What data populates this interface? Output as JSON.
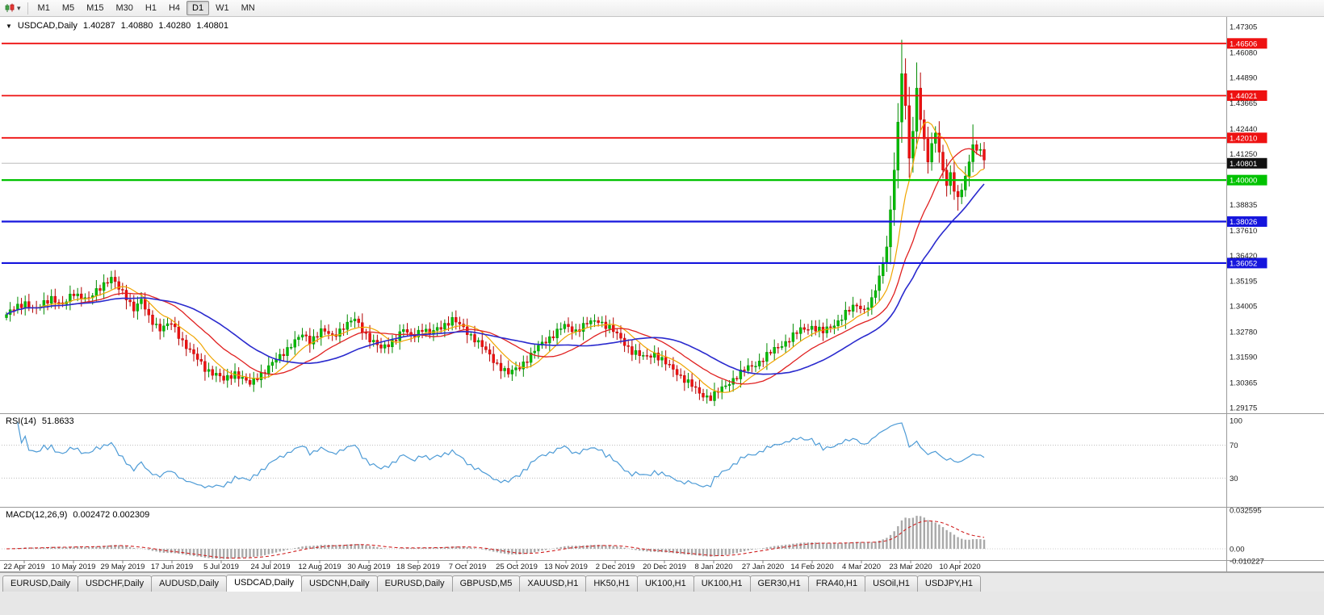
{
  "toolbar": {
    "caret": "▾",
    "timeframes": [
      "M1",
      "M5",
      "M15",
      "M30",
      "H1",
      "H4",
      "D1",
      "W1",
      "MN"
    ],
    "active_timeframe": "D1"
  },
  "header": {
    "collapse_icon": "▼",
    "symbol": "USDCAD,Daily",
    "open": "1.40287",
    "high": "1.40880",
    "low": "1.40280",
    "close": "1.40801"
  },
  "rsi_panel": {
    "title": "RSI(14)",
    "value": "51.8633",
    "levels": [
      "100",
      "70",
      "30"
    ],
    "line_color": "#4d9bd6"
  },
  "macd_panel": {
    "title": "MACD(12,26,9)",
    "value": "0.002472 0.002309",
    "scale_labels": [
      "0.032595",
      "0.00",
      "-0.010227"
    ],
    "signal_color": "#d02020",
    "histogram_color": "#a9a9a9"
  },
  "price_scale": {
    "ticks": [
      "1.47305",
      "1.46080",
      "1.44890",
      "1.43665",
      "1.42440",
      "1.41250",
      "1.38835",
      "1.37610",
      "1.36420",
      "1.35195",
      "1.34005",
      "1.32780",
      "1.31590",
      "1.30365",
      "1.29175"
    ],
    "current_price_label": "1.40801",
    "current_price_bg": "#111111"
  },
  "levels": [
    {
      "price": 1.46506,
      "label": "1.46506",
      "color": "#ee1111",
      "width": 1.8
    },
    {
      "price": 1.44021,
      "label": "1.44021",
      "color": "#ee1111",
      "width": 1.8
    },
    {
      "price": 1.4201,
      "label": "1.42010",
      "color": "#ee1111",
      "width": 1.8
    },
    {
      "price": 1.4,
      "label": "1.40000",
      "color": "#00c200",
      "width": 2.2
    },
    {
      "price": 1.38026,
      "label": "1.38026",
      "color": "#1515dd",
      "width": 2.2
    },
    {
      "price": 1.36052,
      "label": "1.36052",
      "color": "#1515dd",
      "width": 2.2
    }
  ],
  "tabs": {
    "items": [
      "EURUSD,Daily",
      "USDCHF,Daily",
      "AUDUSD,Daily",
      "USDCAD,Daily",
      "USDCNH,Daily",
      "EURUSD,Daily",
      "GBPUSD,M5",
      "XAUUSD,H1",
      "HK50,H1",
      "UK100,H1",
      "UK100,H1",
      "GER30,H1",
      "FRA40,H1",
      "USOil,H1",
      "USDJPY,H1"
    ],
    "active_index": 3
  },
  "chart_data": {
    "type": "candlestick",
    "title": "USDCAD, Daily",
    "symbol": "USDCAD",
    "timeframe": "Daily",
    "current_ohlc": {
      "open": 1.40287,
      "high": 1.4088,
      "low": 1.4028,
      "close": 1.40801
    },
    "current_price": 1.40801,
    "price_axis": {
      "visible_min": 1.29175,
      "visible_max": 1.47305
    },
    "candle_count": 262,
    "up_color": "#00bb00",
    "down_color": "#ee1111",
    "close_anchors": [
      [
        0,
        1.336
      ],
      [
        3,
        1.3395
      ],
      [
        5,
        1.342
      ],
      [
        8,
        1.338
      ],
      [
        12,
        1.3445
      ],
      [
        15,
        1.34
      ],
      [
        18,
        1.3465
      ],
      [
        22,
        1.343
      ],
      [
        26,
        1.351
      ],
      [
        28,
        1.3535
      ],
      [
        30,
        1.348
      ],
      [
        32,
        1.3445
      ],
      [
        34,
        1.339
      ],
      [
        36,
        1.3425
      ],
      [
        38,
        1.3345
      ],
      [
        41,
        1.3295
      ],
      [
        44,
        1.3315
      ],
      [
        47,
        1.3235
      ],
      [
        50,
        1.3165
      ],
      [
        53,
        1.3105
      ],
      [
        56,
        1.3075
      ],
      [
        58,
        1.3045
      ],
      [
        61,
        1.3085
      ],
      [
        63,
        1.3055
      ],
      [
        65,
        1.3025
      ],
      [
        67,
        1.3065
      ],
      [
        70,
        1.311
      ],
      [
        73,
        1.316
      ],
      [
        76,
        1.322
      ],
      [
        79,
        1.326
      ],
      [
        81,
        1.3235
      ],
      [
        84,
        1.3285
      ],
      [
        87,
        1.3255
      ],
      [
        90,
        1.3305
      ],
      [
        93,
        1.3335
      ],
      [
        95,
        1.329
      ],
      [
        97,
        1.3245
      ],
      [
        100,
        1.3195
      ],
      [
        103,
        1.3235
      ],
      [
        106,
        1.3285
      ],
      [
        108,
        1.3255
      ],
      [
        111,
        1.3295
      ],
      [
        113,
        1.3265
      ],
      [
        116,
        1.3305
      ],
      [
        119,
        1.3335
      ],
      [
        122,
        1.3295
      ],
      [
        125,
        1.3245
      ],
      [
        128,
        1.3185
      ],
      [
        131,
        1.3125
      ],
      [
        134,
        1.3075
      ],
      [
        137,
        1.3115
      ],
      [
        140,
        1.3165
      ],
      [
        143,
        1.3225
      ],
      [
        146,
        1.3265
      ],
      [
        149,
        1.3305
      ],
      [
        152,
        1.3285
      ],
      [
        155,
        1.3315
      ],
      [
        158,
        1.3335
      ],
      [
        161,
        1.3295
      ],
      [
        164,
        1.3245
      ],
      [
        167,
        1.3185
      ],
      [
        170,
        1.3155
      ],
      [
        173,
        1.3175
      ],
      [
        176,
        1.3125
      ],
      [
        179,
        1.3085
      ],
      [
        182,
        1.3035
      ],
      [
        185,
        1.2985
      ],
      [
        188,
        1.2965
      ],
      [
        191,
        1.3005
      ],
      [
        194,
        1.3055
      ],
      [
        197,
        1.3095
      ],
      [
        200,
        1.3125
      ],
      [
        203,
        1.3165
      ],
      [
        206,
        1.3205
      ],
      [
        209,
        1.3245
      ],
      [
        212,
        1.3285
      ],
      [
        215,
        1.3305
      ],
      [
        218,
        1.3275
      ],
      [
        221,
        1.3315
      ],
      [
        224,
        1.3365
      ],
      [
        227,
        1.3405
      ],
      [
        229,
        1.3385
      ],
      [
        231,
        1.3425
      ],
      [
        233,
        1.353
      ],
      [
        235,
        1.369
      ],
      [
        236,
        1.386
      ],
      [
        237,
        1.406
      ],
      [
        238,
        1.426
      ],
      [
        239,
        1.451
      ],
      [
        240,
        1.434
      ],
      [
        241,
        1.411
      ],
      [
        242,
        1.424
      ],
      [
        243,
        1.444
      ],
      [
        244,
        1.43
      ],
      [
        245,
        1.418
      ],
      [
        246,
        1.409
      ],
      [
        247,
        1.416
      ],
      [
        248,
        1.423
      ],
      [
        249,
        1.414
      ],
      [
        250,
        1.405
      ],
      [
        251,
        1.3985
      ],
      [
        252,
        1.402
      ],
      [
        253,
        1.395
      ],
      [
        254,
        1.3905
      ],
      [
        255,
        1.396
      ],
      [
        256,
        1.4025
      ],
      [
        257,
        1.409
      ],
      [
        258,
        1.418
      ],
      [
        259,
        1.4125
      ],
      [
        260,
        1.415
      ],
      [
        261,
        1.408
      ]
    ],
    "wick_overrides": {
      "65": {
        "low": 1.3016
      },
      "188": {
        "low": 1.2952
      },
      "239": {
        "high": 1.4668
      },
      "243": {
        "high": 1.456
      },
      "254": {
        "low": 1.3855
      },
      "258": {
        "high": 1.4265
      }
    },
    "moving_averages": [
      {
        "period": 9,
        "color": "#f0a500",
        "width": 1.2
      },
      {
        "period": 20,
        "color": "#e02020",
        "width": 1.3
      },
      {
        "period": 34,
        "color": "#2a2ace",
        "width": 1.6
      }
    ],
    "rsi": {
      "period": 14,
      "current": 51.8633,
      "levels": [
        70,
        30
      ]
    },
    "macd": {
      "fast": 12,
      "slow": 26,
      "signal_period": 9,
      "current_macd": 0.002472,
      "current_signal": 0.002309,
      "scale_max": 0.032595,
      "scale_min": -0.010227
    },
    "date_labels": [
      "22 Apr 2019",
      "10 May 2019",
      "29 May 2019",
      "17 Jun 2019",
      "5 Jul 2019",
      "24 Jul 2019",
      "12 Aug 2019",
      "30 Aug 2019",
      "18 Sep 2019",
      "7 Oct 2019",
      "25 Oct 2019",
      "13 Nov 2019",
      "2 Dec 2019",
      "20 Dec 2019",
      "8 Jan 2020",
      "27 Jan 2020",
      "14 Feb 2020",
      "4 Mar 2020",
      "23 Mar 2020",
      "10 Apr 2020"
    ]
  }
}
